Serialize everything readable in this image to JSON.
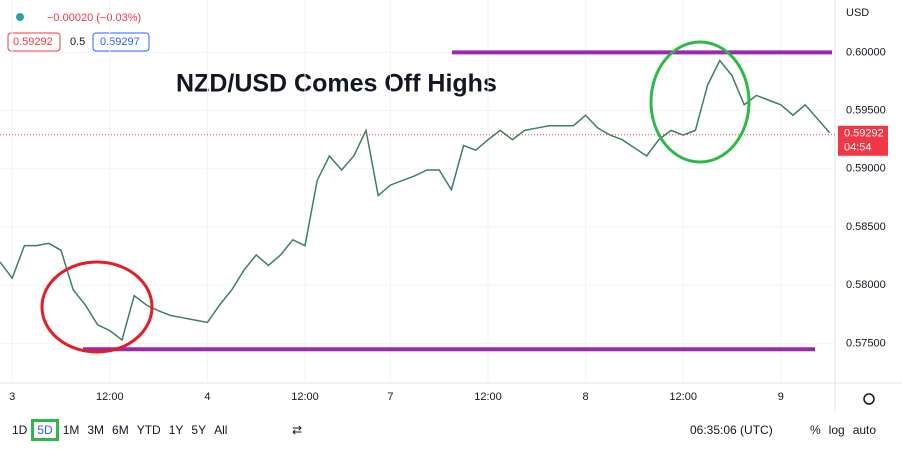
{
  "header": {
    "change": "−0.00020 (−0.03%)",
    "bid": "0.59292",
    "spread": "0.5",
    "ask": "0.59297"
  },
  "toolbar": {
    "ranges": [
      "1D",
      "5D",
      "1M",
      "3M",
      "6M",
      "YTD",
      "1Y",
      "5Y",
      "All"
    ],
    "active": "5D",
    "clock": "06:35:06 (UTC)",
    "options": [
      "%",
      "log",
      "auto"
    ]
  },
  "chart_data": {
    "type": "line",
    "title": "NZD/USD Comes Off Highs",
    "currency": "USD",
    "categories": [
      null,
      "3",
      null,
      null,
      null,
      null,
      null,
      null,
      null,
      "12:00",
      null,
      null,
      null,
      null,
      null,
      null,
      null,
      "4",
      null,
      null,
      null,
      null,
      null,
      null,
      null,
      "12:00",
      null,
      null,
      null,
      null,
      null,
      null,
      "7",
      null,
      null,
      null,
      null,
      null,
      null,
      null,
      "12:00",
      null,
      null,
      null,
      null,
      null,
      null,
      null,
      "8",
      null,
      null,
      null,
      null,
      null,
      null,
      null,
      "12:00",
      null,
      null,
      null,
      null,
      null,
      null,
      null,
      "9",
      null,
      null,
      null,
      null
    ],
    "values": [
      0.582,
      0.5806,
      0.5834,
      0.5834,
      0.5836,
      0.583,
      0.5796,
      0.5783,
      0.5766,
      0.5761,
      0.5753,
      0.5791,
      0.5783,
      0.5778,
      0.5774,
      0.5772,
      0.577,
      0.5768,
      0.5783,
      0.5796,
      0.5813,
      0.5826,
      0.5817,
      0.5826,
      0.5839,
      0.5834,
      0.589,
      0.5911,
      0.5899,
      0.5911,
      0.5933,
      0.5877,
      0.5886,
      0.589,
      0.5894,
      0.5899,
      0.5899,
      0.5882,
      0.592,
      0.5916,
      0.5925,
      0.5933,
      0.5925,
      0.5933,
      0.5935,
      0.5937,
      0.5937,
      0.5937,
      0.5946,
      0.5935,
      0.5929,
      0.5925,
      0.5918,
      0.5911,
      0.5925,
      0.5933,
      0.5929,
      0.5933,
      0.5972,
      0.5993,
      0.598,
      0.5955,
      0.5963,
      0.5959,
      0.5955,
      0.5946,
      0.5955,
      0.5943,
      0.5931
    ],
    "color": "#3d7f5f",
    "ylim": [
      0.5716,
      0.6045
    ],
    "yticks": [
      {
        "value": 0.575,
        "label": "0.57500"
      },
      {
        "value": 0.58,
        "label": "0.58000"
      },
      {
        "value": 0.585,
        "label": "0.58500"
      },
      {
        "value": 0.59,
        "label": "0.59000"
      },
      {
        "value": 0.595,
        "label": "0.59500"
      },
      {
        "value": 0.6,
        "label": "0.60000"
      }
    ],
    "grid": true,
    "levels": [
      0.6,
      0.5745
    ],
    "level_color": "#9c27b0",
    "last_price": {
      "value": 0.59292,
      "label": "0.59292"
    },
    "countdown": "04:54",
    "last_color": "#f23645"
  }
}
